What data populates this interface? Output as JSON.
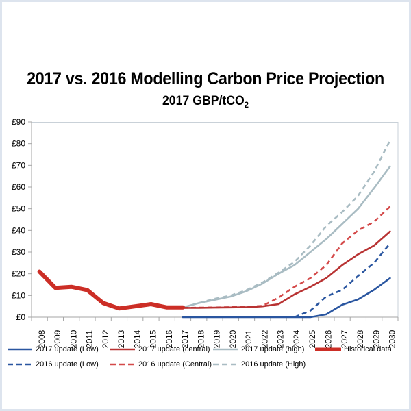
{
  "chart_data": {
    "type": "line",
    "title": "2017 vs. 2016 Modelling Carbon Price Projection",
    "subtitle": "2017 GBP/tCO",
    "subtitle_sub": "2",
    "xlabel": "",
    "ylabel": "",
    "ylim": [
      0,
      90
    ],
    "y_ticks": [
      0,
      10,
      20,
      30,
      40,
      50,
      60,
      70,
      80,
      90
    ],
    "y_tick_labels": [
      "£0",
      "£10",
      "£20",
      "£30",
      "£40",
      "£50",
      "£60",
      "£70",
      "£80",
      "£90"
    ],
    "categories": [
      "2008",
      "2009",
      "2010",
      "2011",
      "2012",
      "2013",
      "2014",
      "2015",
      "2016",
      "2017",
      "2018",
      "2019",
      "2020",
      "2021",
      "2022",
      "2023",
      "2024",
      "2025",
      "2026",
      "2027",
      "2028",
      "2029",
      "2030"
    ],
    "grid": false,
    "legend_position": "bottom",
    "series": [
      {
        "name": "2016 update (High)",
        "color": "#a9bcc3",
        "style": "dashed",
        "width": "normal",
        "values": [
          null,
          null,
          null,
          null,
          null,
          null,
          null,
          null,
          null,
          4.5,
          6.5,
          8.5,
          10,
          12.5,
          16,
          20.5,
          25.5,
          33,
          42,
          48.5,
          56,
          67,
          81.5
        ]
      },
      {
        "name": "2017 update (high)",
        "color": "#a9bcc3",
        "style": "solid",
        "width": "normal",
        "values": [
          null,
          null,
          null,
          null,
          null,
          null,
          null,
          null,
          null,
          4.5,
          6.5,
          8,
          9.5,
          12,
          15.5,
          20,
          24,
          30,
          36,
          43,
          50,
          59.5,
          69.5
        ]
      },
      {
        "name": "2016 update (Central)",
        "color": "#d44a4a",
        "style": "dashed",
        "width": "normal",
        "values": [
          null,
          null,
          null,
          null,
          null,
          null,
          null,
          null,
          null,
          4.3,
          4.4,
          4.5,
          4.6,
          4.8,
          5.2,
          9,
          14,
          18,
          24,
          34,
          40,
          44,
          51
        ]
      },
      {
        "name": "2017 update (central)",
        "color": "#b83232",
        "style": "solid",
        "width": "normal",
        "values": [
          null,
          null,
          null,
          null,
          null,
          null,
          null,
          null,
          null,
          4.3,
          4.3,
          4.4,
          4.5,
          4.6,
          5,
          6,
          10.5,
          14,
          18,
          24,
          29,
          33,
          39.5
        ]
      },
      {
        "name": "2016 update (Low)",
        "color": "#2a56a0",
        "style": "dashed",
        "width": "normal",
        "values": [
          null,
          null,
          null,
          null,
          null,
          null,
          null,
          null,
          null,
          null,
          null,
          null,
          null,
          null,
          null,
          null,
          0,
          3,
          9.5,
          12.6,
          19,
          25,
          34
        ]
      },
      {
        "name": "2017 update (Low)",
        "color": "#2a56a0",
        "style": "solid",
        "width": "normal",
        "values": [
          null,
          null,
          null,
          null,
          null,
          null,
          null,
          null,
          null,
          0,
          0,
          0,
          0,
          0,
          0,
          0,
          0,
          0,
          1.3,
          5.7,
          8.2,
          12.6,
          18
        ]
      },
      {
        "name": "Historical data",
        "color": "#cc2e26",
        "style": "solid",
        "width": "thick",
        "values": [
          21,
          13.5,
          14,
          12.5,
          6.5,
          4,
          5,
          6,
          4.5,
          4.5,
          null,
          null,
          null,
          null,
          null,
          null,
          null,
          null,
          null,
          null,
          null,
          null,
          null
        ]
      }
    ],
    "legend": [
      {
        "label": "2017 update (Low)",
        "color": "#2a56a0",
        "style": "solid"
      },
      {
        "label": "2017 update (central)",
        "color": "#b83232",
        "style": "solid"
      },
      {
        "label": "2017 update (high)",
        "color": "#a9bcc3",
        "style": "solid"
      },
      {
        "label": "Historical data",
        "color": "#cc2e26",
        "style": "thick"
      },
      {
        "label": "2016 update (Low)",
        "color": "#2a56a0",
        "style": "dashed"
      },
      {
        "label": "2016 update (Central)",
        "color": "#d44a4a",
        "style": "dashed"
      },
      {
        "label": "2016 update (High)",
        "color": "#a9bcc3",
        "style": "dashed"
      }
    ]
  },
  "colors": {
    "frame": "#dde4ee",
    "axis": "#a6a6a6",
    "plot_border": "#bfc8d0"
  }
}
